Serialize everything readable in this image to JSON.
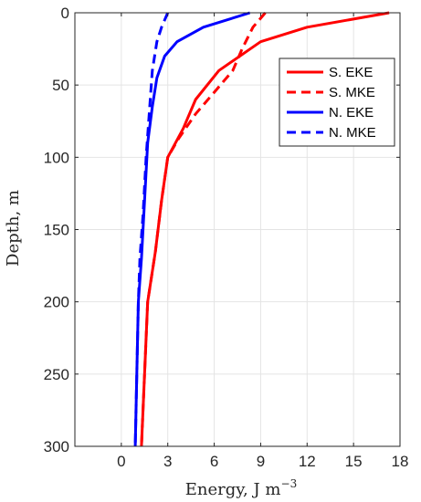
{
  "chart_data": {
    "type": "line",
    "xlabel": "Energy, J m",
    "xlabel_superscript": "−3",
    "ylabel": "Depth, m",
    "xlim": [
      -3,
      18
    ],
    "ylim": [
      0,
      300
    ],
    "y_reversed": true,
    "x_axis_position": "top",
    "xticks": [
      0,
      3,
      6,
      9,
      12,
      15,
      18
    ],
    "yticks": [
      0,
      50,
      100,
      150,
      200,
      250,
      300
    ],
    "xtick_labels": [
      "0",
      "3",
      "6",
      "9",
      "12",
      "15",
      "18"
    ],
    "ytick_labels": [
      "0",
      "50",
      "100",
      "150",
      "200",
      "250",
      "300"
    ],
    "grid": true,
    "legend_position": "top-right",
    "series": [
      {
        "name": "S. EKE",
        "color": "#ff0000",
        "style": "solid",
        "points": [
          [
            17.3,
            0
          ],
          [
            12,
            10
          ],
          [
            9,
            20
          ],
          [
            6.3,
            40
          ],
          [
            4.8,
            60
          ],
          [
            4.0,
            80
          ],
          [
            3.0,
            100
          ],
          [
            2.6,
            130
          ],
          [
            2.2,
            165
          ],
          [
            1.7,
            200
          ],
          [
            1.5,
            250
          ],
          [
            1.3,
            300
          ]
        ]
      },
      {
        "name": "S. MKE",
        "color": "#ff0000",
        "style": "dashed",
        "points": [
          [
            9.3,
            0
          ],
          [
            8.5,
            10
          ],
          [
            7.8,
            25
          ],
          [
            7.2,
            40
          ],
          [
            6.0,
            55
          ],
          [
            4.8,
            70
          ],
          [
            3.7,
            87
          ],
          [
            3.0,
            100
          ],
          [
            2.6,
            130
          ],
          [
            2.2,
            165
          ],
          [
            1.7,
            200
          ],
          [
            1.5,
            250
          ],
          [
            1.3,
            300
          ]
        ]
      },
      {
        "name": "N. EKE",
        "color": "#0000ff",
        "style": "solid",
        "points": [
          [
            8.3,
            0
          ],
          [
            5.3,
            10
          ],
          [
            3.6,
            20
          ],
          [
            2.8,
            30
          ],
          [
            2.3,
            45
          ],
          [
            2.0,
            65
          ],
          [
            1.7,
            90
          ],
          [
            1.5,
            130
          ],
          [
            1.3,
            170
          ],
          [
            1.1,
            200
          ],
          [
            1.0,
            250
          ],
          [
            0.9,
            300
          ]
        ]
      },
      {
        "name": "N. MKE",
        "color": "#0000ff",
        "style": "dashed",
        "points": [
          [
            3.0,
            0
          ],
          [
            2.6,
            10
          ],
          [
            2.3,
            20
          ],
          [
            2.0,
            40
          ],
          [
            1.8,
            70
          ],
          [
            1.6,
            100
          ],
          [
            1.4,
            140
          ],
          [
            1.2,
            170
          ],
          [
            1.1,
            200
          ],
          [
            1.0,
            250
          ],
          [
            0.9,
            300
          ]
        ]
      }
    ]
  }
}
